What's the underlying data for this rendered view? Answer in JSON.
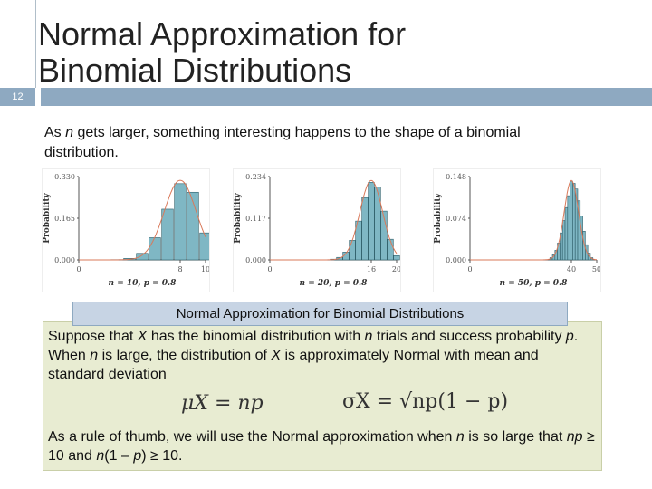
{
  "slide": {
    "title_line1": "Normal Approximation for",
    "title_line2": "Binomial Distributions",
    "number": "12"
  },
  "intro": {
    "text_a": "As ",
    "n": "n",
    "text_b": " gets larger, something interesting happens to the shape of a binomial distribution."
  },
  "chart_data": [
    {
      "type": "bar",
      "ylabel": "Probability",
      "caption": "n = 10, p = 0.8",
      "yticks": [
        "0.330",
        "0.165",
        "0.000"
      ],
      "xticks": [
        "0",
        "8",
        "10"
      ],
      "ylim": [
        0,
        0.33
      ],
      "xlim": [
        0,
        10
      ],
      "x": [
        3,
        4,
        5,
        6,
        7,
        8,
        9,
        10
      ],
      "values": [
        0.001,
        0.006,
        0.026,
        0.088,
        0.201,
        0.302,
        0.268,
        0.107
      ],
      "normal_curve": true
    },
    {
      "type": "bar",
      "ylabel": "Probability",
      "caption": "n = 20, p = 0.8",
      "yticks": [
        "0.234",
        "0.117",
        "0.000"
      ],
      "xticks": [
        "0",
        "16",
        "20"
      ],
      "ylim": [
        0,
        0.234
      ],
      "xlim": [
        0,
        20
      ],
      "x": [
        10,
        11,
        12,
        13,
        14,
        15,
        16,
        17,
        18,
        19,
        20
      ],
      "values": [
        0.002,
        0.007,
        0.022,
        0.055,
        0.109,
        0.175,
        0.218,
        0.205,
        0.137,
        0.058,
        0.012
      ],
      "normal_curve": true
    },
    {
      "type": "bar",
      "ylabel": "Probability",
      "caption": "n = 50, p = 0.8",
      "yticks": [
        "0.148",
        "0.074",
        "0.000"
      ],
      "xticks": [
        "0",
        "40",
        "50"
      ],
      "ylim": [
        0,
        0.148
      ],
      "xlim": [
        0,
        50
      ],
      "x": [
        32,
        33,
        34,
        35,
        36,
        37,
        38,
        39,
        40,
        41,
        42,
        43,
        44,
        45,
        46,
        47,
        48
      ],
      "values": [
        0.004,
        0.009,
        0.017,
        0.03,
        0.048,
        0.07,
        0.093,
        0.114,
        0.14,
        0.136,
        0.126,
        0.105,
        0.078,
        0.051,
        0.027,
        0.012,
        0.004
      ],
      "normal_curve": true
    }
  ],
  "definition": {
    "heading": "Normal Approximation for Binomial Distributions",
    "s1": "Suppose that ",
    "X": "X",
    "s2": " has the binomial distribution with ",
    "n": "n",
    "s3": " trials and success probability ",
    "p": "p",
    "s4": ". When ",
    "n2": "n",
    "s5": " is large, the distribution of ",
    "X2": "X",
    "s6": " is approximately Normal with mean and standard deviation",
    "mean_formula": "μX = np",
    "sd_formula": "σX = √np(1 − p)"
  },
  "rule": {
    "r1": "As a rule of thumb, we will use the Normal approximation when ",
    "n": "n",
    "r2": " is so large that ",
    "np": "np",
    "r3": " ≥ 10 and ",
    "n2": "n",
    "r4": "(1 – ",
    "p": "p",
    "r5": ") ≥ 10."
  },
  "colors": {
    "bar": "#7fb7c4",
    "bar_stroke": "#2f5f6a",
    "curve": "#d9795a",
    "accent": "#8ea9c1"
  }
}
